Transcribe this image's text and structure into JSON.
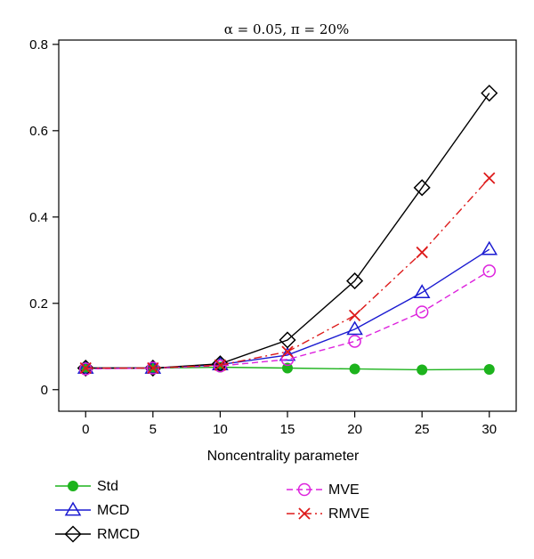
{
  "chart_data": {
    "type": "line",
    "title": "α = 0.05, π = 20%",
    "xlabel": "Noncentrality parameter",
    "ylabel": "",
    "x": [
      0,
      5,
      10,
      15,
      20,
      25,
      30
    ],
    "xticks": [
      "0",
      "5",
      "10",
      "15",
      "20",
      "25",
      "30"
    ],
    "yticks": [
      "0",
      "0.2",
      "0.4",
      "0.6",
      "0.8"
    ],
    "xlim": [
      -2,
      32
    ],
    "ylim": [
      -0.05,
      0.81
    ],
    "grid": false,
    "legend_position": "bottom",
    "series": [
      {
        "name": "Std",
        "values": [
          0.05,
          0.05,
          0.052,
          0.05,
          0.048,
          0.046,
          0.047
        ],
        "color": "#1db31d",
        "marker": "filled-circle",
        "dash": "solid"
      },
      {
        "name": "MCD",
        "values": [
          0.05,
          0.05,
          0.058,
          0.08,
          0.14,
          0.225,
          0.325
        ],
        "color": "#1a1ad1",
        "marker": "triangle",
        "dash": "solid"
      },
      {
        "name": "RMCD",
        "values": [
          0.05,
          0.05,
          0.06,
          0.115,
          0.252,
          0.468,
          0.687
        ],
        "color": "#000000",
        "marker": "diamond",
        "dash": "solid"
      },
      {
        "name": "MVE",
        "values": [
          0.048,
          0.05,
          0.055,
          0.07,
          0.112,
          0.18,
          0.275
        ],
        "color": "#dd22dd",
        "marker": "circle",
        "dash": "dashed"
      },
      {
        "name": "RMVE",
        "values": [
          0.05,
          0.05,
          0.057,
          0.088,
          0.172,
          0.318,
          0.49
        ],
        "color": "#dd1a1a",
        "marker": "cross",
        "dash": "dashdot"
      }
    ]
  }
}
